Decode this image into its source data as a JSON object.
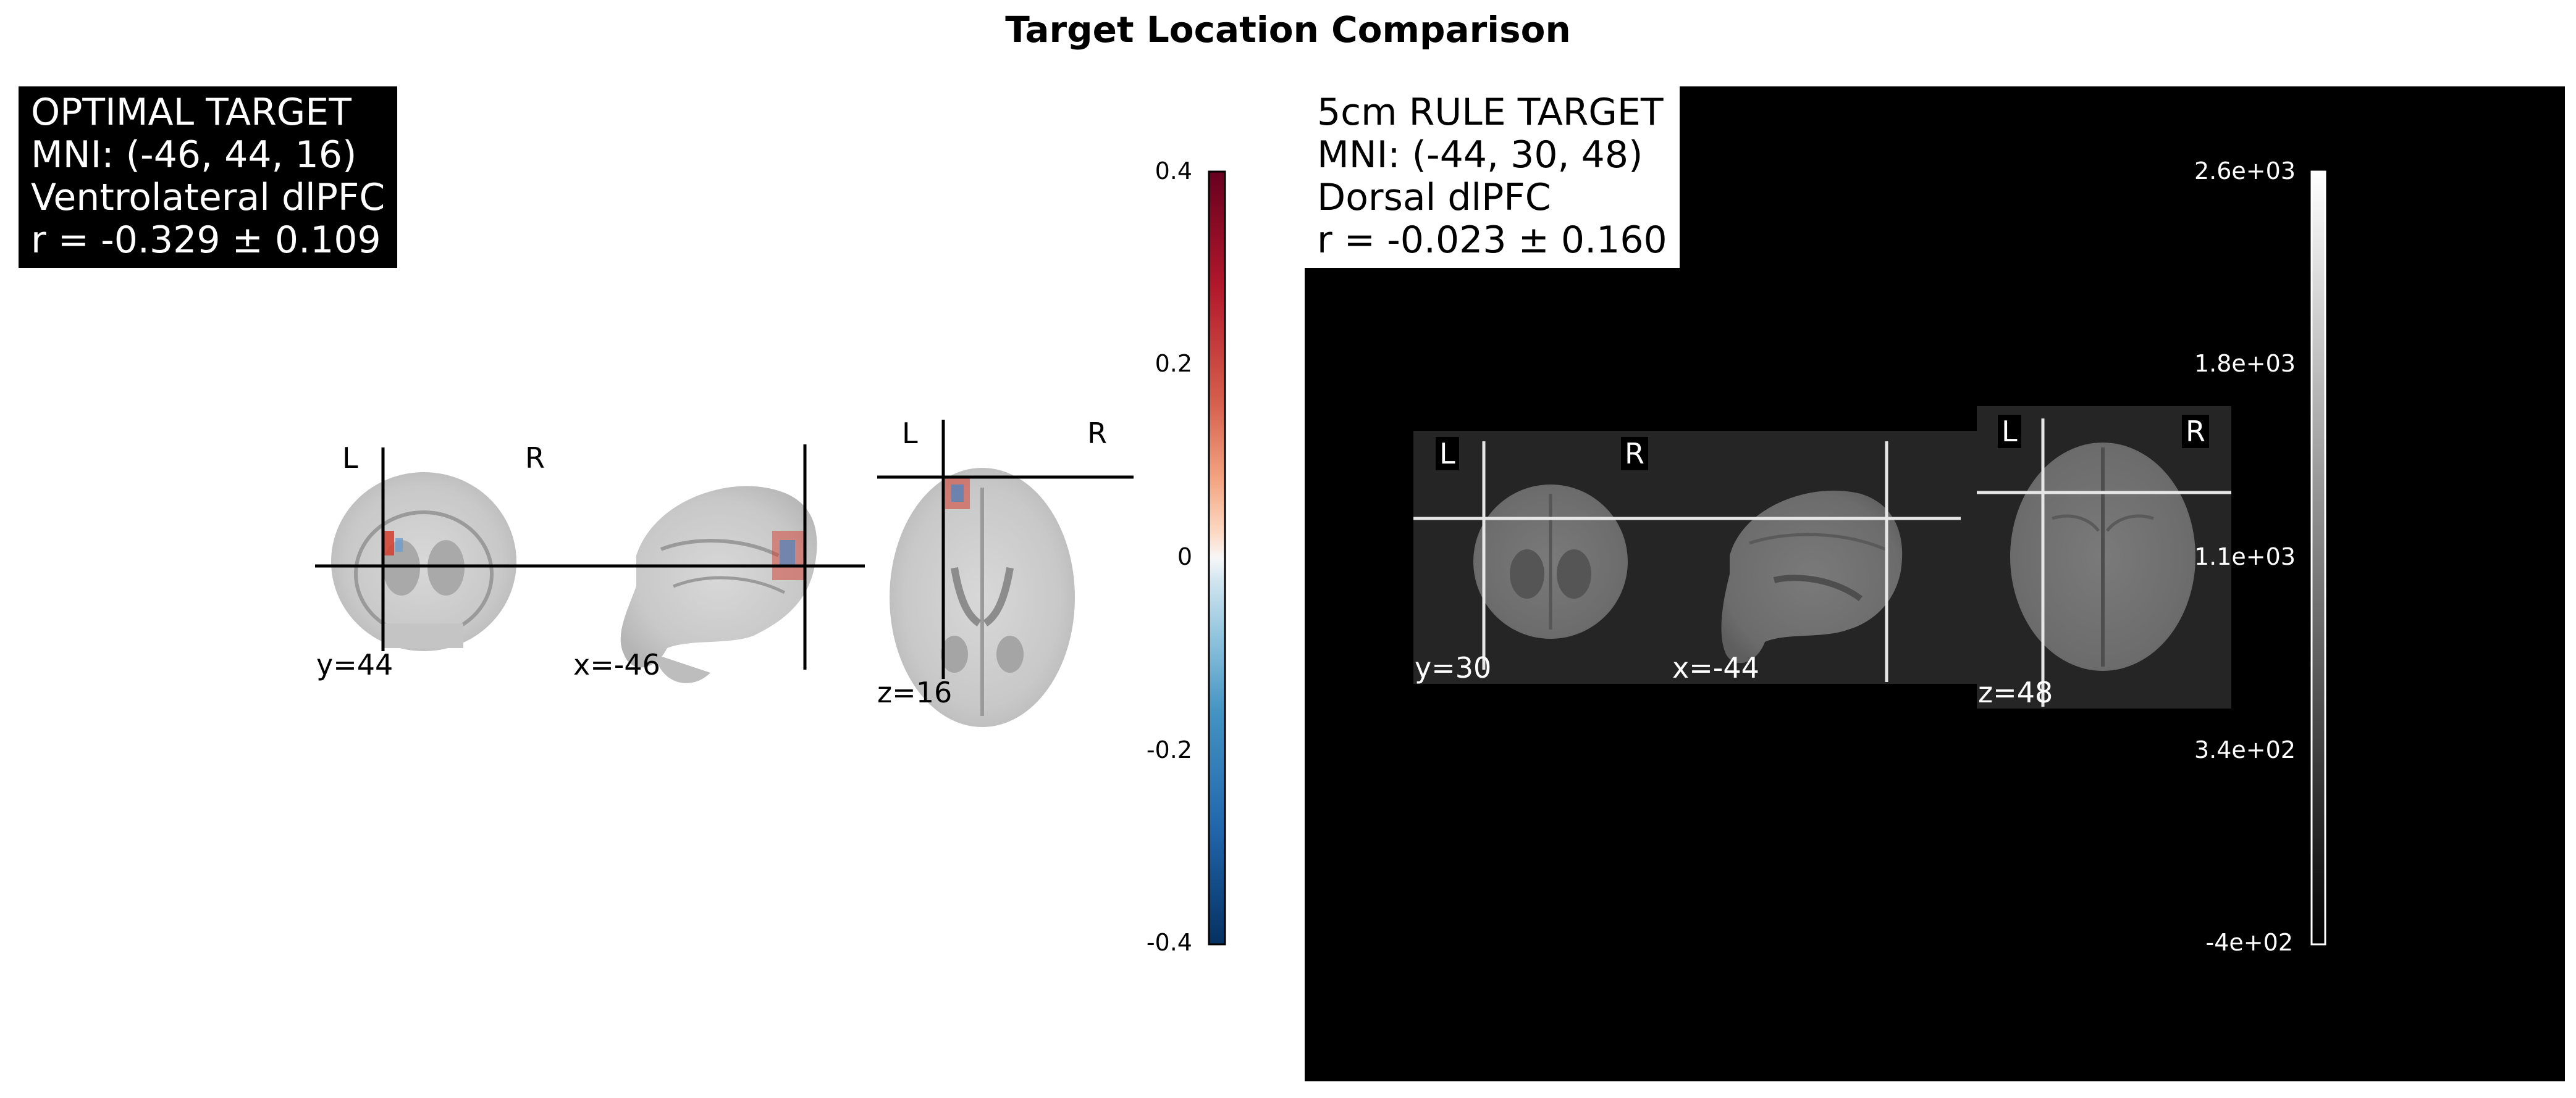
{
  "figure": {
    "title": "Target Location Comparison"
  },
  "optimal": {
    "info_lines": [
      "OPTIMAL TARGET",
      "MNI: (-46, 44, 16)",
      "Ventrolateral dlPFC",
      "r = -0.329 ± 0.109"
    ],
    "slice_labels": {
      "coronal": "y=44",
      "sagittal": "x=-46",
      "axial": "z=16"
    },
    "orientation": {
      "left": "L",
      "right": "R"
    },
    "colorbar": {
      "ticks": [
        "0.4",
        "0.2",
        "0",
        "-0.2",
        "-0.4"
      ],
      "colormap": "RdBu_r",
      "top_color": "#67001f",
      "bottom_color": "#053061"
    }
  },
  "rule": {
    "info_lines": [
      "5cm RULE TARGET",
      "MNI: (-44, 30, 48)",
      "Dorsal dlPFC",
      "r = -0.023 ± 0.160"
    ],
    "slice_labels": {
      "coronal": "y=30",
      "sagittal": "x=-44",
      "axial": "z=48"
    },
    "orientation": {
      "left": "L",
      "right": "R"
    },
    "colorbar": {
      "ticks": [
        "2.6e+03",
        "1.8e+03",
        "1.1e+03",
        "3.4e+02",
        "-4e+02"
      ],
      "colormap": "gray"
    }
  }
}
